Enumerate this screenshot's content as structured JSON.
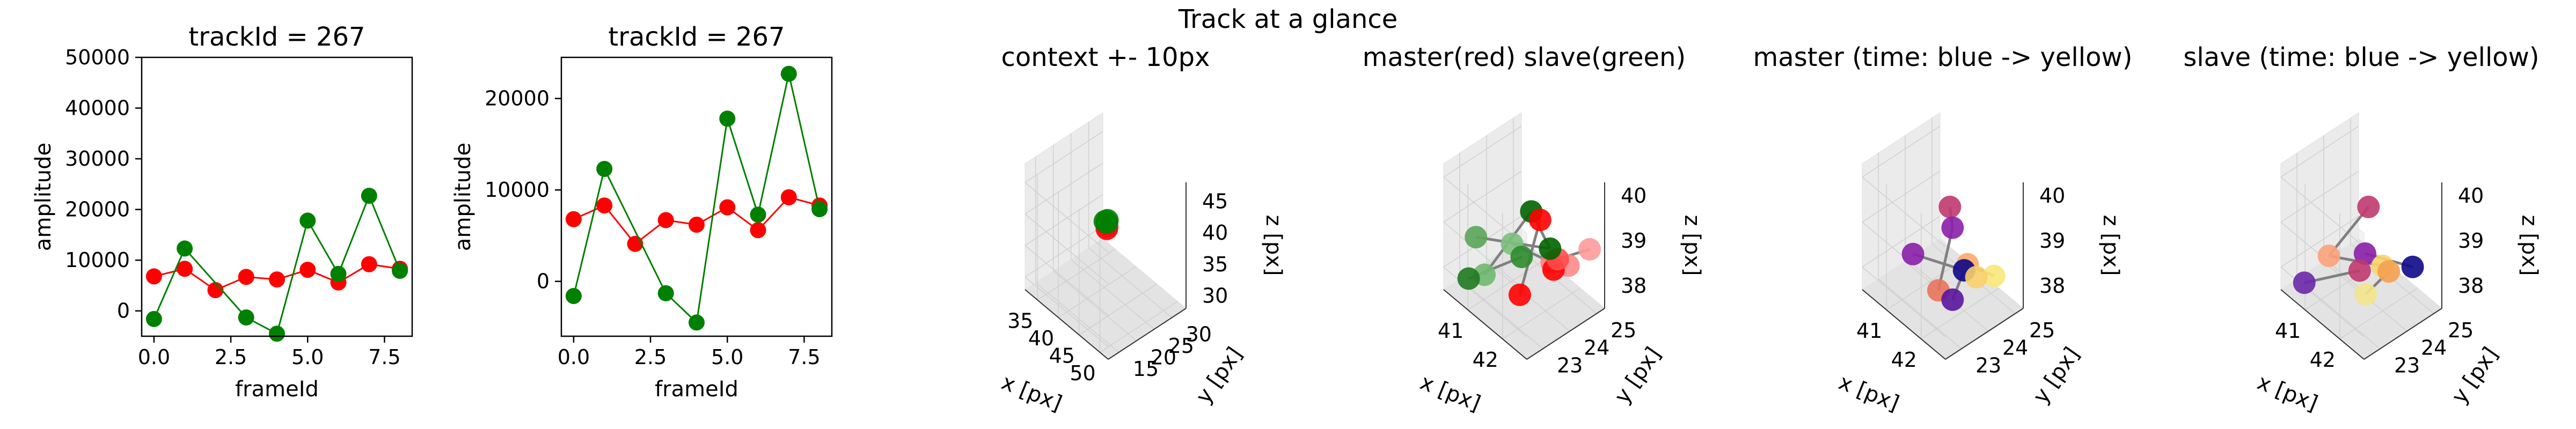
{
  "figure": {
    "suptitle": "Track at a glance"
  },
  "chart_data": [
    {
      "type": "line",
      "title": "trackId = 267",
      "xlabel": "frameId",
      "ylabel": "amplitude",
      "xlim": [
        -0.4,
        8.4
      ],
      "ylim": [
        -5000,
        50000
      ],
      "xticks": [
        "0.0",
        "2.5",
        "5.0",
        "7.5"
      ],
      "yticks": [
        "0",
        "10000",
        "20000",
        "30000",
        "40000",
        "50000"
      ],
      "grid": false,
      "series": [
        {
          "color": "#ff0000",
          "points": [
            [
              0,
              6800
            ],
            [
              1,
              8300
            ],
            [
              2,
              4100
            ],
            [
              3,
              6700
            ],
            [
              4,
              6200
            ],
            [
              5,
              8100
            ],
            [
              6,
              5600
            ],
            [
              7,
              9200
            ],
            [
              8,
              8300
            ]
          ]
        },
        {
          "color": "#008000",
          "points": [
            [
              0,
              -1600
            ],
            [
              1,
              12300
            ],
            [
              3,
              -1300
            ],
            [
              4,
              -4500
            ],
            [
              5,
              17800
            ],
            [
              6,
              7300
            ],
            [
              7,
              22700
            ],
            [
              8,
              7900
            ]
          ]
        }
      ]
    },
    {
      "type": "line",
      "title": "trackId = 267",
      "xlabel": "frameId",
      "ylabel": "amplitude",
      "xlim": [
        -0.4,
        8.4
      ],
      "ylim": [
        -6000,
        24500
      ],
      "xticks": [
        "0.0",
        "2.5",
        "5.0",
        "7.5"
      ],
      "yticks": [
        "0",
        "10000",
        "20000"
      ],
      "grid": false,
      "series": [
        {
          "color": "#ff0000",
          "points": [
            [
              0,
              6800
            ],
            [
              1,
              8300
            ],
            [
              2,
              4100
            ],
            [
              3,
              6700
            ],
            [
              4,
              6200
            ],
            [
              5,
              8100
            ],
            [
              6,
              5600
            ],
            [
              7,
              9200
            ],
            [
              8,
              8300
            ]
          ]
        },
        {
          "color": "#008000",
          "points": [
            [
              0,
              -1600
            ],
            [
              1,
              12300
            ],
            [
              3,
              -1300
            ],
            [
              4,
              -4500
            ],
            [
              5,
              17800
            ],
            [
              6,
              7300
            ],
            [
              7,
              22700
            ],
            [
              8,
              7900
            ]
          ]
        }
      ]
    },
    {
      "type": "scatter",
      "projection": "3d",
      "title": "context +- 10px",
      "xlabel": "x [px]",
      "ylabel": "y [px]",
      "zlabel": "z [px]",
      "xlim": [
        32,
        52
      ],
      "ylim": [
        12,
        34
      ],
      "zlim": [
        28,
        48
      ],
      "xticks": [
        "35",
        "40",
        "45",
        "50"
      ],
      "yticks": [
        "15",
        "20",
        "25",
        "30"
      ],
      "zticks": [
        "30",
        "35",
        "40",
        "45"
      ],
      "points": [
        {
          "x": 41.6,
          "y": 24.0,
          "z": 39.0,
          "color": "#ff5a5a"
        },
        {
          "x": 41.8,
          "y": 23.6,
          "z": 38.8,
          "color": "#ff0000"
        },
        {
          "x": 41.2,
          "y": 24.3,
          "z": 39.2,
          "color": "#008000"
        },
        {
          "x": 41.7,
          "y": 23.9,
          "z": 40.0,
          "color": "#008000"
        },
        {
          "x": 40.9,
          "y": 24.1,
          "z": 39.3,
          "color": "#008000"
        }
      ],
      "lines": [
        [
          [
            41.2,
            24.3,
            39.2
          ],
          [
            41.8,
            23.6,
            38.8
          ]
        ],
        [
          [
            41.7,
            23.9,
            40.0
          ],
          [
            41.6,
            24.0,
            39.0
          ]
        ]
      ]
    },
    {
      "type": "scatter",
      "projection": "3d",
      "title": "master(red) slave(green)",
      "xlabel": "x [px]",
      "ylabel": "y [px]",
      "zlabel": "z [px]",
      "xlim": [
        40.3,
        42.7
      ],
      "ylim": [
        22.4,
        25.3
      ],
      "zlim": [
        37.5,
        40.3
      ],
      "xticks": [
        "41",
        "42"
      ],
      "yticks": [
        "23",
        "24",
        "25"
      ],
      "zticks": [
        "38",
        "39",
        "40"
      ],
      "points": [
        {
          "x": 41.9,
          "y": 23.6,
          "z": 39.8,
          "color": "#006400"
        },
        {
          "x": 42.0,
          "y": 23.8,
          "z": 39.6,
          "color": "#ff0000"
        },
        {
          "x": 42.1,
          "y": 24.1,
          "z": 38.6,
          "color": "#ff7f7f"
        },
        {
          "x": 42.2,
          "y": 24.6,
          "z": 38.4,
          "color": "#ff8a8a"
        },
        {
          "x": 41.8,
          "y": 23.3,
          "z": 38.0,
          "color": "#ff0000"
        },
        {
          "x": 42.0,
          "y": 24.3,
          "z": 38.3,
          "color": "#ff0000"
        },
        {
          "x": 42.2,
          "y": 24.2,
          "z": 38.7,
          "color": "#ff4d4d"
        },
        {
          "x": 42.5,
          "y": 25.0,
          "z": 38.8,
          "color": "#ff9a9a"
        },
        {
          "x": 41.0,
          "y": 22.7,
          "z": 39.0,
          "color": "#5aa55a"
        },
        {
          "x": 41.5,
          "y": 23.4,
          "z": 38.9,
          "color": "#7cc07c"
        },
        {
          "x": 41.7,
          "y": 23.5,
          "z": 38.7,
          "color": "#2e8b2e"
        },
        {
          "x": 41.9,
          "y": 24.3,
          "z": 38.7,
          "color": "#006400"
        },
        {
          "x": 41.4,
          "y": 22.5,
          "z": 38.5,
          "color": "#6fb86f"
        },
        {
          "x": 41.1,
          "y": 22.3,
          "z": 38.3,
          "color": "#1f7a1f"
        }
      ],
      "lines": [
        [
          [
            41.9,
            23.6,
            39.8
          ],
          [
            42.0,
            23.8,
            39.6
          ]
        ],
        [
          [
            42.0,
            23.8,
            39.6
          ],
          [
            41.8,
            23.3,
            38.0
          ]
        ],
        [
          [
            41.0,
            22.7,
            39.0
          ],
          [
            41.9,
            24.3,
            38.7
          ]
        ],
        [
          [
            41.5,
            23.4,
            38.9
          ],
          [
            42.1,
            24.1,
            38.6
          ]
        ],
        [
          [
            41.7,
            23.5,
            38.7
          ],
          [
            41.1,
            22.3,
            38.3
          ]
        ],
        [
          [
            41.9,
            23.6,
            39.8
          ],
          [
            41.9,
            24.3,
            38.7
          ]
        ],
        [
          [
            41.4,
            22.5,
            38.5
          ],
          [
            41.9,
            23.6,
            39.8
          ]
        ],
        [
          [
            42.2,
            24.2,
            38.7
          ],
          [
            42.5,
            25.0,
            38.8
          ]
        ]
      ]
    },
    {
      "type": "scatter",
      "projection": "3d",
      "title": "master (time: blue -> yellow)",
      "xlabel": "x [px]",
      "ylabel": "y [px]",
      "zlabel": "z [px]",
      "xlim": [
        40.3,
        42.7
      ],
      "ylim": [
        22.4,
        25.3
      ],
      "zlim": [
        37.5,
        40.3
      ],
      "xticks": [
        "41",
        "42"
      ],
      "yticks": [
        "23",
        "24",
        "25"
      ],
      "zticks": [
        "38",
        "39",
        "40"
      ],
      "points": [
        {
          "x": 41.9,
          "y": 23.6,
          "z": 39.9,
          "color": "#c0396f"
        },
        {
          "x": 41.9,
          "y": 23.7,
          "z": 39.4,
          "color": "#8a1fa8"
        },
        {
          "x": 41.3,
          "y": 23.0,
          "z": 38.7,
          "color": "#8a1fa8"
        },
        {
          "x": 42.1,
          "y": 24.0,
          "z": 38.6,
          "color": "#fca86b"
        },
        {
          "x": 42.0,
          "y": 24.0,
          "z": 38.4,
          "color": "#0d0887"
        },
        {
          "x": 41.8,
          "y": 23.3,
          "z": 38.1,
          "color": "#e8735a"
        },
        {
          "x": 41.9,
          "y": 23.7,
          "z": 37.8,
          "color": "#5a14a0"
        },
        {
          "x": 42.4,
          "y": 24.6,
          "z": 38.3,
          "color": "#f8e87a"
        },
        {
          "x": 42.2,
          "y": 24.2,
          "z": 38.3,
          "color": "#fad06a"
        }
      ],
      "lines": [
        [
          [
            41.9,
            23.6,
            39.9
          ],
          [
            41.9,
            23.7,
            39.4
          ]
        ],
        [
          [
            41.9,
            23.7,
            39.4
          ],
          [
            41.8,
            23.3,
            38.1
          ]
        ],
        [
          [
            41.3,
            23.0,
            38.7
          ],
          [
            42.0,
            24.0,
            38.4
          ]
        ],
        [
          [
            42.0,
            24.0,
            38.4
          ],
          [
            41.9,
            23.7,
            37.8
          ]
        ],
        [
          [
            42.1,
            24.0,
            38.6
          ],
          [
            42.4,
            24.6,
            38.3
          ]
        ]
      ]
    },
    {
      "type": "scatter",
      "projection": "3d",
      "title": "slave (time: blue -> yellow)",
      "xlabel": "x [px]",
      "ylabel": "y [px]",
      "zlabel": "z [px]",
      "xlim": [
        40.3,
        42.7
      ],
      "ylim": [
        22.4,
        25.3
      ],
      "zlim": [
        37.5,
        40.3
      ],
      "xticks": [
        "41",
        "42"
      ],
      "yticks": [
        "23",
        "24",
        "25"
      ],
      "zticks": [
        "38",
        "39",
        "40"
      ],
      "points": [
        {
          "x": 41.9,
          "y": 23.6,
          "z": 39.9,
          "color": "#c0396f"
        },
        {
          "x": 41.3,
          "y": 22.9,
          "z": 38.7,
          "color": "#fca27a"
        },
        {
          "x": 41.8,
          "y": 23.6,
          "z": 38.8,
          "color": "#8a1fa8"
        },
        {
          "x": 41.8,
          "y": 23.4,
          "z": 38.5,
          "color": "#c0396f"
        },
        {
          "x": 42.0,
          "y": 24.0,
          "z": 38.5,
          "color": "#fbd46a"
        },
        {
          "x": 42.1,
          "y": 24.1,
          "z": 38.4,
          "color": "#f5a050"
        },
        {
          "x": 42.4,
          "y": 24.6,
          "z": 38.5,
          "color": "#0d0887"
        },
        {
          "x": 41.9,
          "y": 23.5,
          "z": 38.0,
          "color": "#f3e48a"
        },
        {
          "x": 40.9,
          "y": 22.5,
          "z": 38.0,
          "color": "#6a28a8"
        }
      ],
      "lines": [
        [
          [
            41.9,
            23.6,
            39.9
          ],
          [
            41.3,
            22.9,
            38.7
          ]
        ],
        [
          [
            41.3,
            22.9,
            38.7
          ],
          [
            42.0,
            24.0,
            38.5
          ]
        ],
        [
          [
            41.8,
            23.6,
            38.8
          ],
          [
            42.4,
            24.6,
            38.5
          ]
        ],
        [
          [
            40.9,
            22.5,
            38.0
          ],
          [
            41.8,
            23.4,
            38.5
          ]
        ],
        [
          [
            41.9,
            23.5,
            38.0
          ],
          [
            42.1,
            24.1,
            38.4
          ]
        ]
      ]
    }
  ]
}
